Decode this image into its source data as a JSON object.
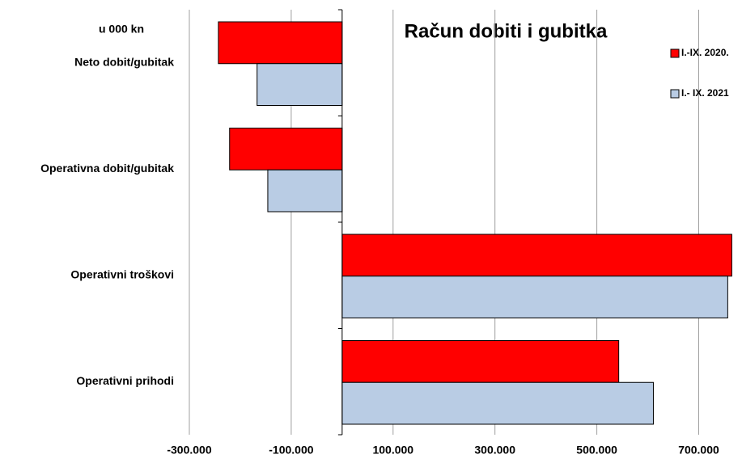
{
  "chart_data": {
    "type": "barh",
    "title": "Račun dobiti i gubitka",
    "annotation": "u 000 kn",
    "categories": [
      "Neto dobit/gubitak",
      "Operativna dobit/gubitak",
      "Operativni troškovi",
      "Operativni prihodi"
    ],
    "series": [
      {
        "name": "I.-IX. 2020.",
        "color": "#ff0000",
        "values": [
          -243000,
          -221000,
          765000,
          543000
        ]
      },
      {
        "name": "I.- IX. 2021",
        "color": "#b9cce4",
        "values": [
          -167000,
          -146000,
          757000,
          611000
        ]
      }
    ],
    "xlim": [
      -300000,
      785000
    ],
    "xticks": [
      {
        "value": -300000,
        "label": "-300.000"
      },
      {
        "value": -100000,
        "label": "-100.000"
      },
      {
        "value": 100000,
        "label": "100.000"
      },
      {
        "value": 300000,
        "label": "300.000"
      },
      {
        "value": 500000,
        "label": "500.000"
      },
      {
        "value": 700000,
        "label": "700.000"
      }
    ],
    "grid": true,
    "legend": "right"
  }
}
